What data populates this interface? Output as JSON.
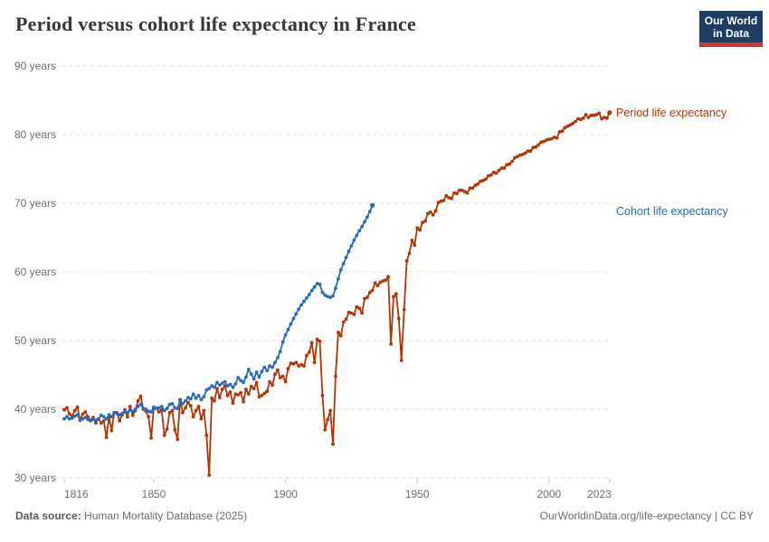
{
  "header": {
    "title": "Period versus cohort life expectancy in France",
    "logo_line1": "Our World",
    "logo_line2": "in Data"
  },
  "chart_data": {
    "type": "line",
    "title": "Period versus cohort life expectancy in France",
    "xlabel": "",
    "ylabel": "",
    "xlim": [
      1816,
      2023
    ],
    "ylim": [
      30,
      90
    ],
    "x_ticks": [
      1816,
      1850,
      1900,
      1950,
      2000,
      2023
    ],
    "y_ticks": [
      30,
      40,
      50,
      60,
      70,
      80,
      90
    ],
    "y_tick_suffix": " years",
    "grid": "horizontal-dashed",
    "legend_position": "right-end-labels",
    "series": [
      {
        "id": "period",
        "name": "Period life expectancy",
        "color": "#B13507",
        "start_year": 1816,
        "end_year": 2023,
        "values": [
          39.9,
          40.2,
          39.3,
          39.0,
          39.8,
          40.3,
          38.4,
          39.3,
          39.6,
          38.9,
          38.4,
          38.8,
          38.0,
          38.6,
          38.0,
          38.3,
          35.9,
          38.8,
          36.9,
          39.5,
          39.5,
          38.3,
          39.2,
          39.9,
          38.9,
          40.4,
          39.1,
          39.8,
          41.2,
          41.9,
          40.0,
          39.7,
          38.9,
          35.8,
          40.2,
          40.1,
          39.6,
          39.9,
          36.2,
          37.1,
          39.5,
          39.8,
          37.0,
          35.6,
          41.4,
          39.5,
          40.2,
          41.0,
          40.5,
          38.9,
          39.8,
          40.4,
          38.6,
          39.8,
          36.2,
          30.4,
          41.6,
          41.2,
          43.0,
          41.7,
          42.9,
          43.4,
          42.0,
          42.5,
          40.9,
          42.2,
          42.1,
          42.4,
          41.1,
          42.9,
          42.2,
          43.3,
          43.0,
          43.9,
          41.8,
          42.0,
          42.3,
          42.6,
          44.0,
          43.5,
          45.1,
          45.7,
          44.6,
          44.8,
          44.0,
          45.9,
          46.7,
          46.6,
          46.8,
          46.3,
          46.5,
          46.3,
          47.8,
          48.3,
          49.7,
          46.8,
          50.2,
          49.9,
          42.0,
          37.0,
          38.5,
          39.8,
          34.9,
          44.8,
          51.2,
          50.7,
          52.7,
          53.1,
          54.1,
          54.0,
          53.8,
          54.9,
          54.7,
          54.0,
          56.1,
          56.3,
          57.0,
          57.3,
          58.4,
          58.0,
          58.5,
          58.7,
          58.8,
          59.3,
          49.5,
          56.4,
          56.8,
          53.2,
          47.1,
          54.5,
          61.6,
          62.7,
          64.6,
          63.9,
          66.4,
          66.1,
          67.2,
          67.4,
          68.5,
          68.7,
          68.3,
          68.9,
          70.1,
          70.3,
          70.4,
          71.1,
          70.8,
          70.7,
          71.5,
          71.4,
          71.9,
          71.9,
          71.7,
          71.5,
          72.2,
          72.2,
          72.6,
          72.8,
          73.2,
          73.3,
          73.5,
          74.0,
          74.1,
          74.5,
          74.4,
          74.8,
          75.1,
          75.1,
          75.6,
          75.7,
          76.1,
          76.6,
          76.8,
          77.0,
          77.1,
          77.3,
          77.6,
          77.6,
          78.1,
          78.2,
          78.5,
          78.9,
          79.0,
          79.2,
          79.3,
          79.4,
          79.6,
          79.5,
          80.4,
          80.5,
          81.0,
          81.2,
          81.4,
          81.6,
          81.9,
          82.3,
          82.2,
          82.4,
          82.9,
          82.5,
          82.8,
          82.8,
          82.9,
          83.1,
          82.3,
          82.5,
          82.4,
          83.2
        ]
      },
      {
        "id": "cohort",
        "name": "Cohort life expectancy",
        "color": "#286BBB",
        "start_year": 1816,
        "end_year": 1933,
        "values": [
          38.6,
          38.9,
          38.6,
          38.7,
          39.0,
          39.2,
          38.4,
          38.6,
          38.8,
          38.5,
          38.3,
          38.5,
          38.4,
          38.6,
          39.1,
          38.9,
          38.6,
          39.2,
          38.9,
          39.5,
          39.4,
          39.2,
          39.4,
          39.6,
          39.5,
          39.9,
          39.7,
          40.0,
          40.4,
          40.7,
          40.1,
          40.0,
          39.7,
          39.6,
          40.3,
          40.1,
          40.2,
          40.4,
          39.8,
          40.1,
          40.7,
          40.8,
          40.2,
          40.1,
          41.3,
          40.8,
          41.2,
          41.7,
          41.5,
          42.2,
          41.6,
          42.0,
          41.4,
          41.8,
          42.8,
          43.0,
          43.4,
          43.2,
          43.9,
          43.5,
          43.8,
          44.0,
          43.4,
          43.6,
          43.2,
          43.7,
          44.6,
          44.2,
          43.9,
          44.7,
          45.8,
          45.1,
          44.4,
          45.4,
          44.7,
          45.5,
          46.1,
          45.6,
          46.3,
          46.1,
          46.8,
          47.5,
          48.4,
          49.8,
          50.8,
          51.6,
          52.4,
          53.2,
          53.9,
          54.6,
          55.2,
          55.7,
          56.2,
          56.7,
          57.3,
          57.8,
          58.3,
          58.2,
          57.0,
          56.6,
          56.4,
          56.3,
          56.5,
          57.6,
          59.0,
          60.3,
          61.2,
          62.1,
          63.0,
          63.8,
          64.6,
          65.3,
          66.0,
          66.6,
          67.3,
          68.0,
          68.8,
          69.7
        ]
      }
    ]
  },
  "footer": {
    "source_label": "Data source:",
    "source_value": " Human Mortality Database (2025)",
    "credit": "OurWorldinData.org/life-expectancy | CC BY"
  }
}
